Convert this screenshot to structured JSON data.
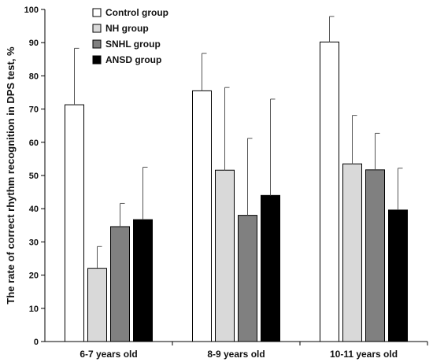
{
  "chart_data": {
    "type": "bar",
    "title": "",
    "xlabel": "",
    "ylabel": "The rate of correct rhythm recognition in DPS test, %",
    "ylim": [
      0,
      100
    ],
    "yticks": [
      0,
      10,
      20,
      30,
      40,
      50,
      60,
      70,
      80,
      90,
      100
    ],
    "grid": false,
    "legend_position": "top-left",
    "categories": [
      "6-7 years old",
      "8-9 years old",
      "10-11 years old"
    ],
    "series": [
      {
        "name": "Control group",
        "color": "#ffffff",
        "values": [
          71.3,
          75.5,
          90.2
        ],
        "errors": [
          17.0,
          11.3,
          7.7
        ]
      },
      {
        "name": "NH group",
        "color": "#d9d9d9",
        "values": [
          22.0,
          51.6,
          53.5
        ],
        "errors": [
          6.6,
          24.9,
          14.6
        ]
      },
      {
        "name": "SNHL group",
        "color": "#808080",
        "values": [
          34.6,
          38.0,
          51.7
        ],
        "errors": [
          7.0,
          23.2,
          11.0
        ]
      },
      {
        "name": "ANSD group",
        "color": "#000000",
        "values": [
          36.7,
          44.0,
          39.6
        ],
        "errors": [
          15.8,
          29.0,
          12.6
        ]
      }
    ]
  }
}
